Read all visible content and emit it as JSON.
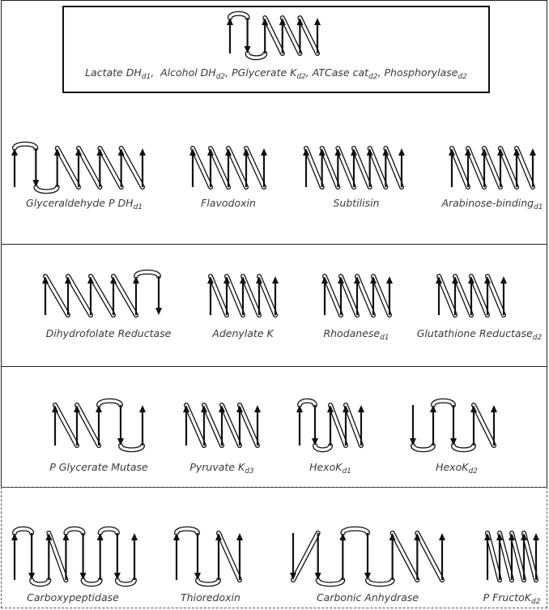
{
  "top": {
    "caption_parts": [
      {
        "name": "Lactate DH",
        "sub": "d1"
      },
      {
        "name": "Alcohol DH",
        "sub": "d2"
      },
      {
        "name": "PGlycerate K",
        "sub": "d2"
      },
      {
        "name": "ATCase cat",
        "sub": "d2"
      },
      {
        "name": "Phosphorylase",
        "sub": "d2"
      }
    ],
    "strand_directions": [
      "up",
      "down",
      "up",
      "up",
      "up",
      "up"
    ]
  },
  "rows": [
    {
      "items": [
        {
          "name": "Glyceraldehyde P DH",
          "sub": "d1",
          "strands": [
            "up",
            "down",
            "up",
            "up",
            "up",
            "up",
            "up"
          ]
        },
        {
          "name": "Flavodoxin",
          "sub": "",
          "strands": [
            "up",
            "up",
            "up",
            "up",
            "up"
          ]
        },
        {
          "name": "Subtilisin",
          "sub": "",
          "strands": [
            "up",
            "up",
            "up",
            "up",
            "up",
            "up",
            "up"
          ]
        },
        {
          "name": "Arabinose-binding",
          "sub": "d1",
          "strands": [
            "up",
            "up",
            "up",
            "up",
            "up",
            "up"
          ]
        }
      ]
    },
    {
      "items": [
        {
          "name": "Dihydrofolate Reductase",
          "sub": "",
          "strands": [
            "up",
            "up",
            "up",
            "up",
            "up",
            "down"
          ]
        },
        {
          "name": "Adenylate K",
          "sub": "",
          "strands": [
            "up",
            "up",
            "up",
            "up",
            "up"
          ]
        },
        {
          "name": "Rhodanese",
          "sub": "d1",
          "strands": [
            "up",
            "up",
            "up",
            "up",
            "up"
          ]
        },
        {
          "name": "Glutathione Reductase",
          "sub": "d2",
          "strands": [
            "up",
            "up",
            "up",
            "up",
            "up"
          ]
        }
      ]
    },
    {
      "items": [
        {
          "name": "P Glycerate Mutase",
          "sub": "",
          "strands": [
            "up",
            "up",
            "up",
            "down",
            "up"
          ]
        },
        {
          "name": "Pyruvate K",
          "sub": "d3",
          "strands": [
            "up",
            "up",
            "up",
            "up",
            "up"
          ]
        },
        {
          "name": "HexoK",
          "sub": "d1",
          "strands": [
            "up",
            "down",
            "up",
            "up",
            "up"
          ]
        },
        {
          "name": "HexoK",
          "sub": "d2",
          "strands": [
            "down",
            "up",
            "down",
            "up",
            "up"
          ]
        }
      ]
    },
    {
      "items": [
        {
          "name": "Carboxypeptidase",
          "sub": "",
          "strands": [
            "up",
            "down",
            "up",
            "up",
            "down",
            "up",
            "down",
            "up"
          ]
        },
        {
          "name": "Thioredoxin",
          "sub": "",
          "strands": [
            "up",
            "down",
            "up",
            "up"
          ]
        },
        {
          "name": "Carbonic Anhydrase",
          "sub": "",
          "strands": [
            "down",
            "down",
            "up",
            "down",
            "up",
            "up",
            "up"
          ]
        },
        {
          "name": "P FructoK",
          "sub": "d2",
          "strands": [
            "up",
            "up",
            "up",
            "up",
            "up"
          ]
        }
      ]
    }
  ]
}
